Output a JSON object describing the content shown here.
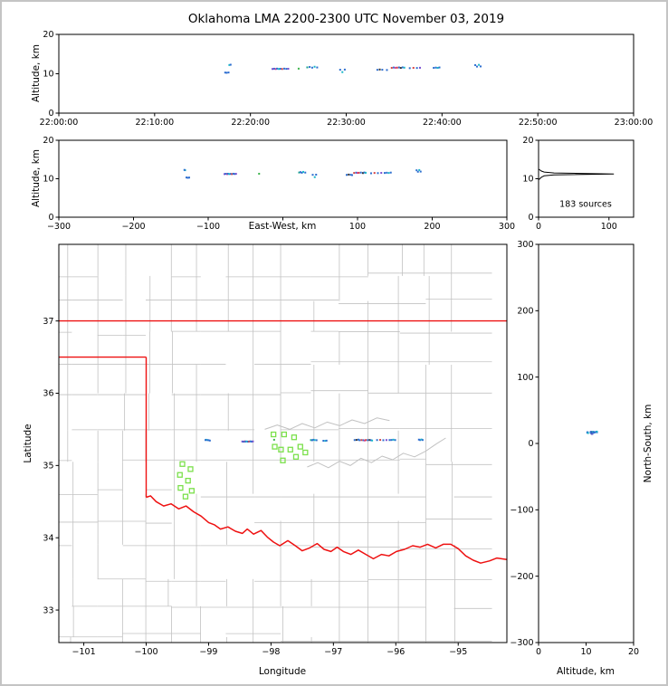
{
  "chart_data": {
    "type": "scatter",
    "title": "Oklahoma LMA 2200-2300 UTC November 03, 2019",
    "palette": [
      "#2f6fd0",
      "#19b8c9",
      "#7a4fd0",
      "#d64545",
      "#d03a9a",
      "#1fa58f",
      "#333333",
      "#3cb44b"
    ],
    "origin": {
      "lon": -97.6,
      "lat": 35.2,
      "km_per_deg_lon": 90.9,
      "km_per_deg_lat": 111.3
    },
    "sources": [
      [
        1042,
        -98.98,
        35.345,
        10.3,
        0
      ],
      [
        1051,
        -99.0,
        35.35,
        10.25,
        0
      ],
      [
        1063,
        -99.02,
        35.352,
        10.32,
        0
      ],
      [
        1068,
        -99.04,
        35.356,
        12.22,
        1
      ],
      [
        1076,
        -99.05,
        35.352,
        12.3,
        0
      ],
      [
        1338,
        -98.46,
        35.332,
        11.22,
        2
      ],
      [
        1349,
        -98.44,
        35.33,
        11.28,
        0
      ],
      [
        1358,
        -98.42,
        35.334,
        11.2,
        4
      ],
      [
        1367,
        -98.41,
        35.331,
        11.3,
        0
      ],
      [
        1378,
        -98.39,
        35.333,
        11.22,
        1
      ],
      [
        1388,
        -98.37,
        35.33,
        11.26,
        0
      ],
      [
        1399,
        -98.35,
        35.332,
        11.21,
        3
      ],
      [
        1412,
        -98.33,
        35.334,
        11.3,
        0
      ],
      [
        1425,
        -98.31,
        35.331,
        11.24,
        0
      ],
      [
        1437,
        -98.29,
        35.333,
        11.27,
        2
      ],
      [
        1502,
        -97.95,
        35.356,
        11.3,
        7
      ],
      [
        1556,
        -97.36,
        35.352,
        11.62,
        5
      ],
      [
        1571,
        -97.34,
        35.35,
        11.72,
        0
      ],
      [
        1587,
        -97.32,
        35.356,
        11.55,
        0
      ],
      [
        1602,
        -97.3,
        35.352,
        11.78,
        1
      ],
      [
        1618,
        -97.27,
        35.35,
        11.6,
        0
      ],
      [
        1762,
        -97.16,
        35.342,
        11.02,
        0
      ],
      [
        1776,
        -97.13,
        35.341,
        10.42,
        1
      ],
      [
        1791,
        -97.11,
        35.344,
        11.06,
        0
      ],
      [
        1995,
        -96.66,
        35.352,
        11.0,
        0
      ],
      [
        2010,
        -96.63,
        35.354,
        11.08,
        6
      ],
      [
        2026,
        -96.6,
        35.358,
        11.02,
        0
      ],
      [
        2055,
        -96.58,
        35.35,
        10.95,
        0
      ],
      [
        2085,
        -96.55,
        35.352,
        11.5,
        3
      ],
      [
        2097,
        -96.52,
        35.35,
        11.58,
        0
      ],
      [
        2108,
        -96.5,
        35.346,
        11.52,
        4
      ],
      [
        2119,
        -96.48,
        35.352,
        11.55,
        3
      ],
      [
        2131,
        -96.45,
        35.351,
        11.6,
        0
      ],
      [
        2142,
        -96.42,
        35.353,
        11.48,
        6
      ],
      [
        2153,
        -96.4,
        35.35,
        11.62,
        0
      ],
      [
        2164,
        -96.38,
        35.346,
        11.55,
        1
      ],
      [
        2198,
        -96.3,
        35.352,
        11.42,
        0
      ],
      [
        2221,
        -96.25,
        35.354,
        11.5,
        3
      ],
      [
        2243,
        -96.2,
        35.35,
        11.46,
        0
      ],
      [
        2262,
        -96.15,
        35.352,
        11.52,
        2
      ],
      [
        2348,
        -96.1,
        35.352,
        11.5,
        0
      ],
      [
        2361,
        -96.07,
        35.353,
        11.56,
        0
      ],
      [
        2373,
        -96.04,
        35.357,
        11.5,
        1
      ],
      [
        2384,
        -96.01,
        35.352,
        11.6,
        0
      ],
      [
        2608,
        -95.63,
        35.358,
        12.2,
        0
      ],
      [
        2619,
        -95.61,
        35.352,
        11.82,
        0
      ],
      [
        2631,
        -95.59,
        35.36,
        12.26,
        1
      ],
      [
        2642,
        -95.57,
        35.353,
        11.86,
        0
      ]
    ],
    "panels": {
      "time_height": {
        "ylabel": "Altitude, km",
        "xlim": [
          0,
          3600
        ],
        "ylim": [
          0,
          20
        ],
        "xticks": [
          [
            0,
            "22:00:00"
          ],
          [
            600,
            "22:10:00"
          ],
          [
            1200,
            "22:20:00"
          ],
          [
            1800,
            "22:30:00"
          ],
          [
            2400,
            "22:40:00"
          ],
          [
            3000,
            "22:50:00"
          ],
          [
            3600,
            "23:00:00"
          ]
        ],
        "yticks": [
          [
            0,
            "0"
          ],
          [
            10,
            "10"
          ],
          [
            20,
            "20"
          ]
        ]
      },
      "ew_height": {
        "xlabel": "East-West, km",
        "ylabel": "Altitude, km",
        "xlim": [
          -300,
          300
        ],
        "ylim": [
          0,
          20
        ],
        "xticks": [
          [
            -300,
            "−300"
          ],
          [
            -200,
            "−200"
          ],
          [
            -100,
            "−100"
          ],
          [
            0,
            ""
          ],
          [
            100,
            "100"
          ],
          [
            200,
            "200"
          ],
          [
            300,
            "300"
          ]
        ],
        "yticks": [
          [
            0,
            "0"
          ],
          [
            10,
            "10"
          ],
          [
            20,
            "20"
          ]
        ]
      },
      "alt_histogram": {
        "annotation": "183 sources",
        "xlim": [
          0,
          135
        ],
        "ylim": [
          0,
          20
        ],
        "xticks": [
          [
            0,
            "0"
          ],
          [
            100,
            "100"
          ]
        ],
        "yticks": [
          [
            0,
            "0"
          ],
          [
            10,
            "10"
          ],
          [
            20,
            "20"
          ]
        ],
        "counts": [
          [
            10.0,
            2
          ],
          [
            10.25,
            3
          ],
          [
            10.5,
            5
          ],
          [
            10.75,
            8
          ],
          [
            11.0,
            22
          ],
          [
            11.25,
            107
          ],
          [
            11.5,
            22
          ],
          [
            11.75,
            8
          ],
          [
            12.0,
            4
          ],
          [
            12.25,
            2
          ]
        ]
      },
      "map": {
        "xlabel": "Longitude",
        "ylabel": "Latitude",
        "xlim": [
          -101.4,
          -94.22
        ],
        "ylim": [
          32.55,
          38.06
        ],
        "xticks": [
          [
            -101,
            "−101"
          ],
          [
            -100,
            "−100"
          ],
          [
            -99,
            "−99"
          ],
          [
            -98,
            "−98"
          ],
          [
            -97,
            "−97"
          ],
          [
            -96,
            "−96"
          ],
          [
            -95,
            "−95"
          ]
        ],
        "yticks": [
          [
            33,
            "33"
          ],
          [
            34,
            "34"
          ],
          [
            35,
            "35"
          ],
          [
            36,
            "36"
          ],
          [
            37,
            "37"
          ]
        ],
        "state_color": "#ee1111",
        "county_color": "#c2c2c2",
        "station_color": "#7be04b",
        "stations": [
          [
            -99.42,
            35.02
          ],
          [
            -99.29,
            34.95
          ],
          [
            -99.46,
            34.87
          ],
          [
            -99.33,
            34.79
          ],
          [
            -99.45,
            34.69
          ],
          [
            -99.27,
            34.65
          ],
          [
            -99.37,
            34.57
          ],
          [
            -97.96,
            35.43
          ],
          [
            -97.79,
            35.43
          ],
          [
            -97.63,
            35.39
          ],
          [
            -97.94,
            35.26
          ],
          [
            -97.84,
            35.22
          ],
          [
            -97.69,
            35.22
          ],
          [
            -97.53,
            35.26
          ],
          [
            -97.6,
            35.12
          ],
          [
            -97.45,
            35.18
          ],
          [
            -97.81,
            35.07
          ]
        ],
        "state_border": {
          "north_lat": 37.0,
          "panhandle_lat": 36.5,
          "panhandle_east_lon": -100.0,
          "red_river": [
            [
              -100.0,
              34.56
            ],
            [
              -99.93,
              34.58
            ],
            [
              -99.84,
              34.5
            ],
            [
              -99.72,
              34.44
            ],
            [
              -99.6,
              34.47
            ],
            [
              -99.48,
              34.4
            ],
            [
              -99.36,
              34.44
            ],
            [
              -99.24,
              34.36
            ],
            [
              -99.12,
              34.3
            ],
            [
              -99.0,
              34.21
            ],
            [
              -98.91,
              34.18
            ],
            [
              -98.81,
              34.12
            ],
            [
              -98.69,
              34.15
            ],
            [
              -98.57,
              34.09
            ],
            [
              -98.46,
              34.06
            ],
            [
              -98.38,
              34.12
            ],
            [
              -98.28,
              34.05
            ],
            [
              -98.16,
              34.1
            ],
            [
              -98.06,
              34.01
            ],
            [
              -97.96,
              33.94
            ],
            [
              -97.86,
              33.89
            ],
            [
              -97.73,
              33.96
            ],
            [
              -97.61,
              33.89
            ],
            [
              -97.5,
              33.82
            ],
            [
              -97.38,
              33.86
            ],
            [
              -97.26,
              33.92
            ],
            [
              -97.15,
              33.84
            ],
            [
              -97.04,
              33.81
            ],
            [
              -96.94,
              33.87
            ],
            [
              -96.84,
              33.81
            ],
            [
              -96.72,
              33.77
            ],
            [
              -96.6,
              33.83
            ],
            [
              -96.48,
              33.77
            ],
            [
              -96.36,
              33.71
            ],
            [
              -96.23,
              33.77
            ],
            [
              -96.11,
              33.75
            ],
            [
              -95.99,
              33.81
            ],
            [
              -95.86,
              33.84
            ],
            [
              -95.73,
              33.89
            ],
            [
              -95.61,
              33.87
            ],
            [
              -95.49,
              33.91
            ],
            [
              -95.36,
              33.86
            ],
            [
              -95.24,
              33.91
            ],
            [
              -95.12,
              33.91
            ],
            [
              -95.0,
              33.85
            ],
            [
              -94.88,
              33.75
            ],
            [
              -94.76,
              33.69
            ],
            [
              -94.64,
              33.65
            ],
            [
              -94.5,
              33.68
            ],
            [
              -94.38,
              33.72
            ],
            [
              -94.22,
              33.7
            ]
          ]
        },
        "rivers": [
          [
            [
              -97.42,
              34.98
            ],
            [
              -97.25,
              35.04
            ],
            [
              -97.08,
              34.97
            ],
            [
              -96.9,
              35.06
            ],
            [
              -96.73,
              35.0
            ],
            [
              -96.56,
              35.1
            ],
            [
              -96.39,
              35.04
            ],
            [
              -96.22,
              35.13
            ],
            [
              -96.05,
              35.08
            ],
            [
              -95.88,
              35.17
            ],
            [
              -95.7,
              35.12
            ],
            [
              -95.52,
              35.2
            ],
            [
              -95.35,
              35.3
            ],
            [
              -95.2,
              35.38
            ]
          ],
          [
            [
              -98.1,
              35.5
            ],
            [
              -97.9,
              35.56
            ],
            [
              -97.7,
              35.5
            ],
            [
              -97.5,
              35.58
            ],
            [
              -97.3,
              35.52
            ],
            [
              -97.1,
              35.6
            ],
            [
              -96.9,
              35.55
            ],
            [
              -96.7,
              35.63
            ],
            [
              -96.5,
              35.58
            ],
            [
              -96.3,
              35.66
            ],
            [
              -96.1,
              35.62
            ]
          ]
        ]
      },
      "ns_height": {
        "xlabel": "Altitude, km",
        "ylabel_right": "North-South, km",
        "xlim": [
          0,
          20
        ],
        "ylim": [
          -300,
          300
        ],
        "xticks": [
          [
            0,
            "0"
          ],
          [
            10,
            "10"
          ],
          [
            20,
            "20"
          ]
        ],
        "yticks": [
          [
            -300,
            "−300"
          ],
          [
            -200,
            "−200"
          ],
          [
            -100,
            "−100"
          ],
          [
            0,
            "0"
          ],
          [
            100,
            "100"
          ],
          [
            200,
            "200"
          ],
          [
            300,
            "300"
          ]
        ]
      }
    }
  }
}
